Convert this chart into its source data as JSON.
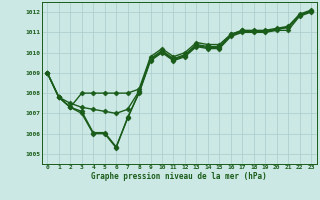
{
  "xlabel": "Graphe pression niveau de la mer (hPa)",
  "ylim": [
    1004.5,
    1012.5
  ],
  "xlim": [
    -0.5,
    23.5
  ],
  "yticks": [
    1005,
    1006,
    1007,
    1008,
    1009,
    1010,
    1011,
    1012
  ],
  "xticks": [
    0,
    1,
    2,
    3,
    4,
    5,
    6,
    7,
    8,
    9,
    10,
    11,
    12,
    13,
    14,
    15,
    16,
    17,
    18,
    19,
    20,
    21,
    22,
    23
  ],
  "bg_color": "#cce8e4",
  "grid_color": "#aacccc",
  "line_color": "#1a5c1a",
  "series": [
    [
      1009.0,
      1007.8,
      1007.3,
      1007.0,
      1006.0,
      1006.0,
      1005.3,
      1006.8,
      1008.0,
      1009.6,
      1010.0,
      1009.6,
      1009.8,
      1010.3,
      1010.2,
      1010.2,
      1010.8,
      1011.0,
      1011.0,
      1011.0,
      1011.1,
      1011.1,
      1011.8,
      1012.0
    ],
    [
      1009.0,
      1007.8,
      1007.3,
      1008.0,
      1008.0,
      1008.0,
      1008.0,
      1008.0,
      1008.2,
      1009.8,
      1010.2,
      1009.8,
      1010.0,
      1010.5,
      1010.4,
      1010.4,
      1010.9,
      1011.1,
      1011.1,
      1011.1,
      1011.2,
      1011.3,
      1011.9,
      1012.1
    ],
    [
      1009.0,
      1007.8,
      1007.5,
      1007.3,
      1007.2,
      1007.1,
      1007.0,
      1007.2,
      1008.1,
      1009.7,
      1010.1,
      1009.7,
      1009.9,
      1010.4,
      1010.3,
      1010.3,
      1010.9,
      1011.1,
      1011.05,
      1011.05,
      1011.15,
      1011.25,
      1011.85,
      1012.05
    ],
    [
      1009.0,
      1007.8,
      1007.3,
      1007.1,
      1006.05,
      1006.05,
      1005.35,
      1006.75,
      1008.05,
      1009.65,
      1010.05,
      1009.65,
      1009.85,
      1010.35,
      1010.25,
      1010.25,
      1010.85,
      1011.05,
      1011.05,
      1011.05,
      1011.15,
      1011.25,
      1011.85,
      1012.05
    ]
  ],
  "marker": "D",
  "marker_size": 2.5,
  "line_width": 1.0
}
